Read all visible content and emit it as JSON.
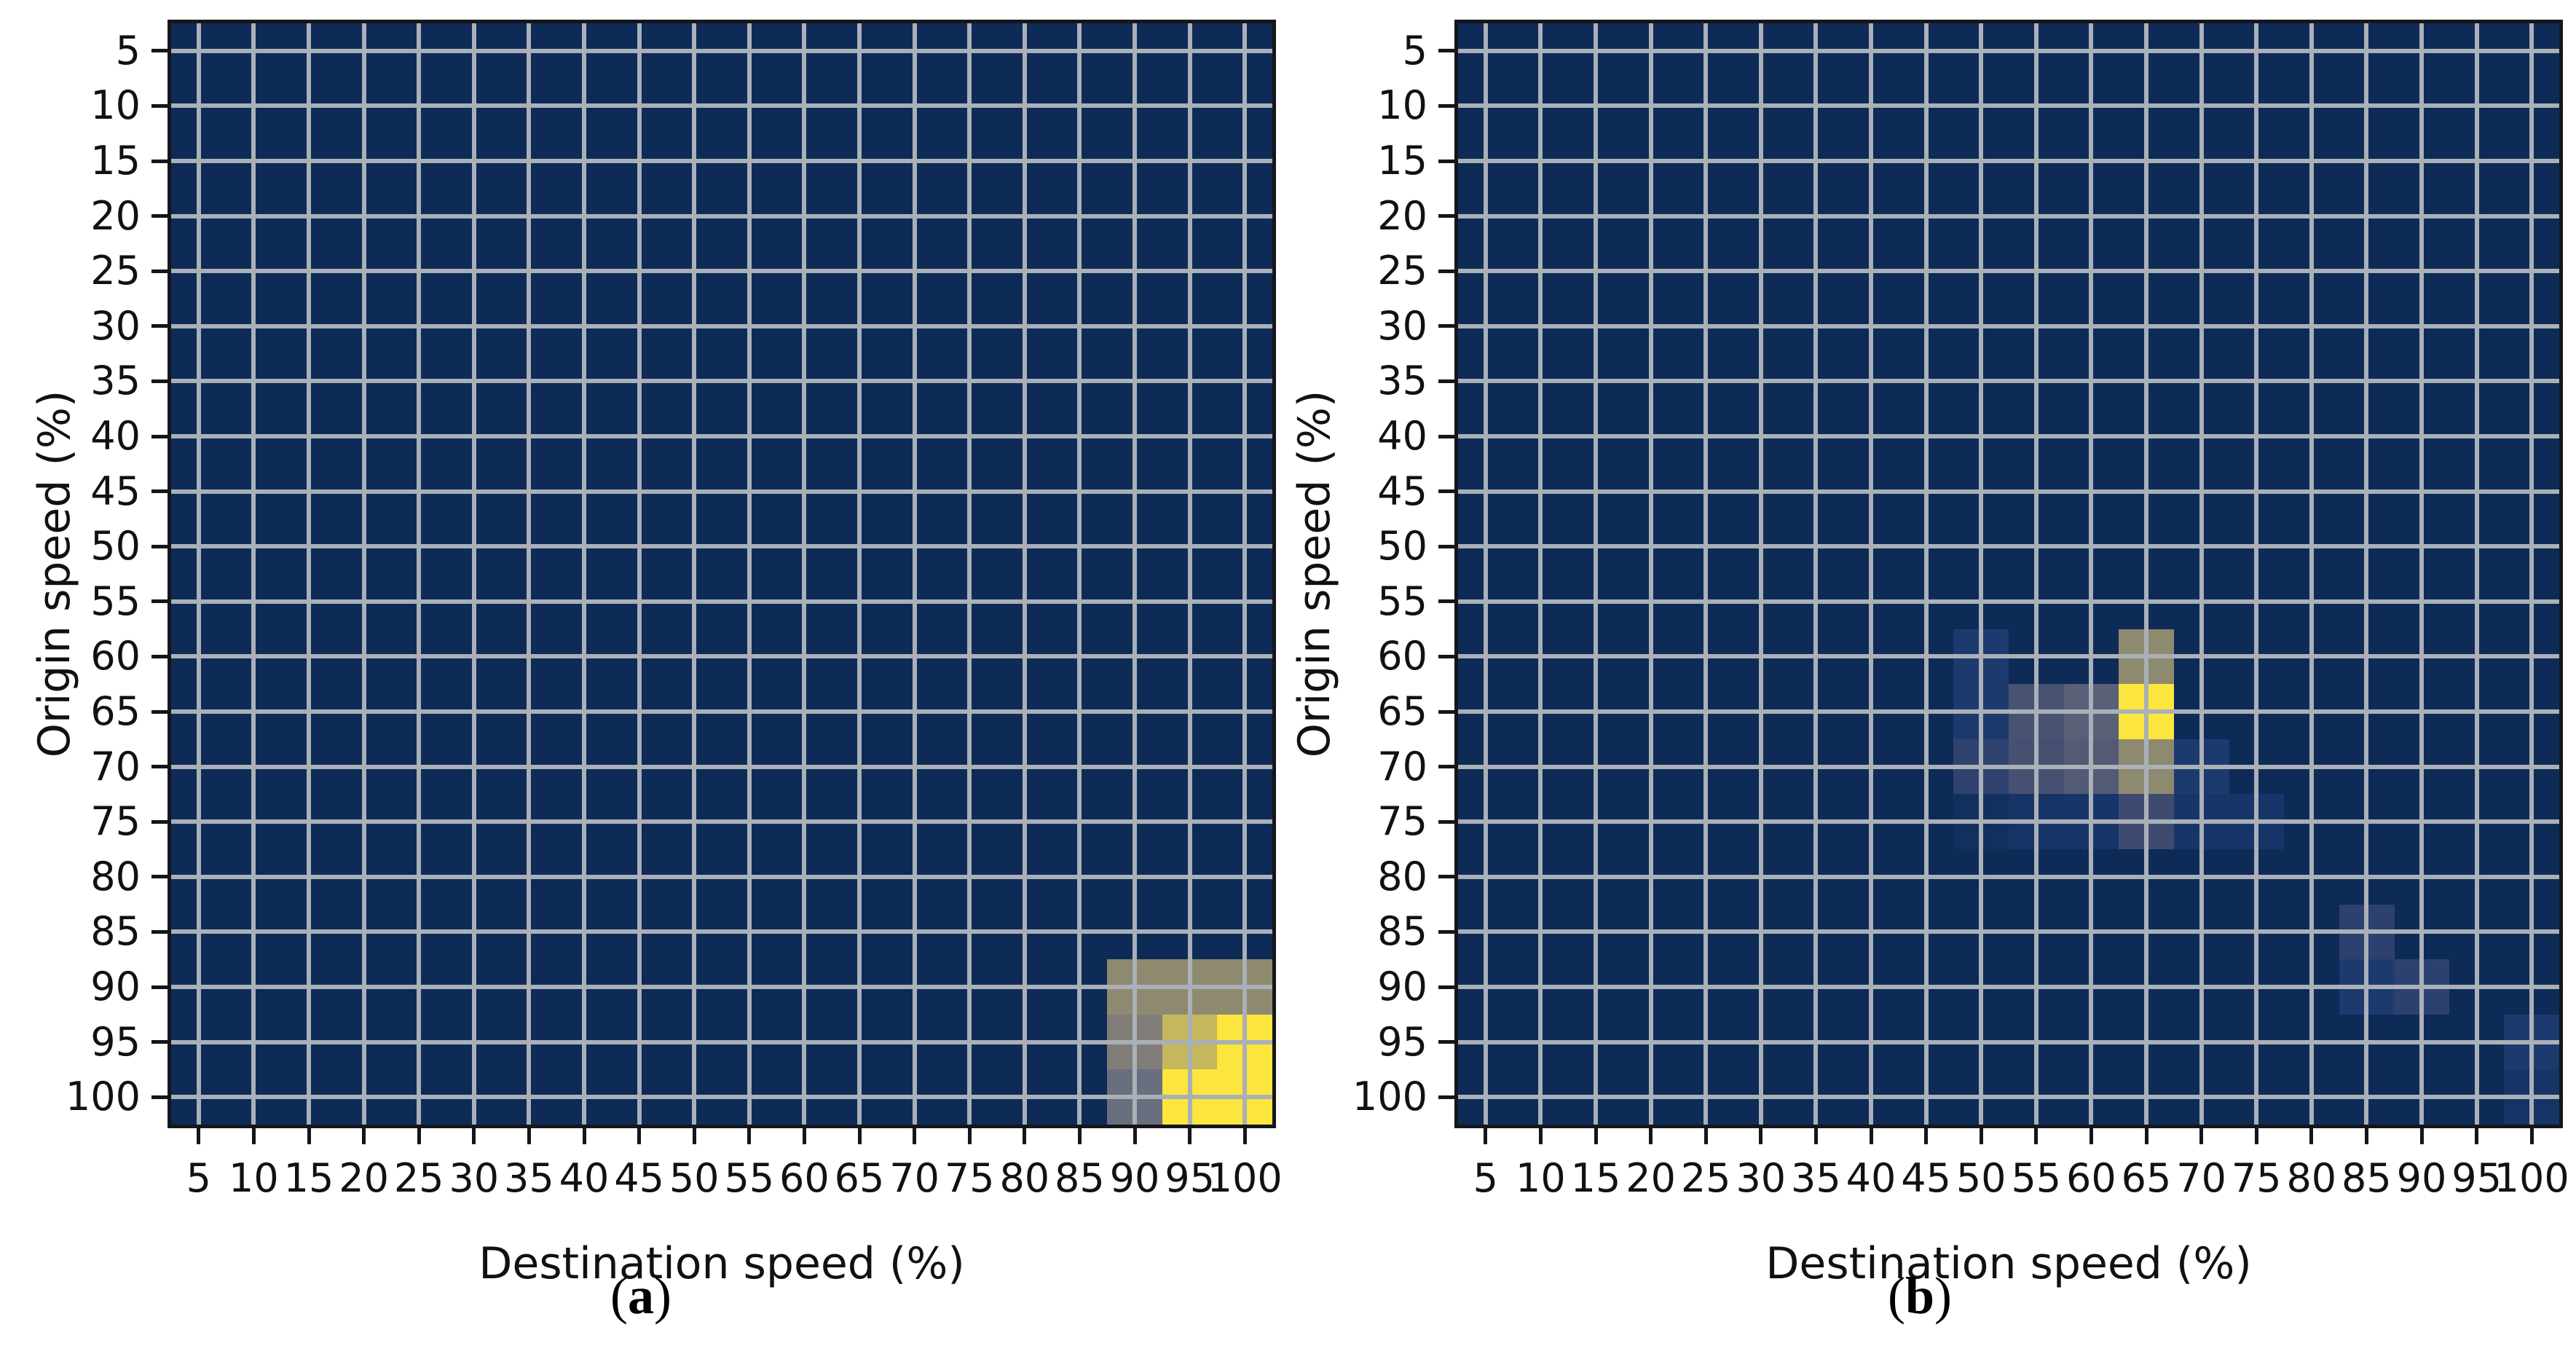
{
  "figure": {
    "description": "Two side-by-side 20x20 heatmaps of origin speed vs destination speed",
    "background": "#ffffff"
  },
  "style": {
    "heatmap_background": "#0e2a57",
    "gridline_color": "#aab0b7",
    "spine_color": "#16161a",
    "tick_color": "#16161a",
    "text_color": "#111111",
    "palette": [
      {
        "v": 0.0,
        "color": "#0e2a57"
      },
      {
        "v": 0.08,
        "color": "#12305f"
      },
      {
        "v": 0.13,
        "color": "#173568"
      },
      {
        "v": 0.16,
        "color": "#1d3a6f"
      },
      {
        "v": 0.24,
        "color": "#2c4170"
      },
      {
        "v": 0.3,
        "color": "#35446f"
      },
      {
        "v": 0.33,
        "color": "#3f4a71"
      },
      {
        "v": 0.38,
        "color": "#485271"
      },
      {
        "v": 0.43,
        "color": "#5a6078"
      },
      {
        "v": 0.47,
        "color": "#6a6f80"
      },
      {
        "v": 0.52,
        "color": "#817e79"
      },
      {
        "v": 0.6,
        "color": "#8e8a70"
      },
      {
        "v": 0.8,
        "color": "#c5b75e"
      },
      {
        "v": 1.0,
        "color": "#fce63e"
      }
    ]
  },
  "chart_data": [
    {
      "id": "a",
      "type": "heatmap",
      "caption": {
        "open": "(",
        "letter": "a",
        "close": ")"
      },
      "xlabel": "Destination speed (%)",
      "ylabel": "Origin speed (%)",
      "x_ticks": [
        5,
        10,
        15,
        20,
        25,
        30,
        35,
        40,
        45,
        50,
        55,
        60,
        65,
        70,
        75,
        80,
        85,
        90,
        95,
        100
      ],
      "y_ticks": [
        5,
        10,
        15,
        20,
        25,
        30,
        35,
        40,
        45,
        50,
        55,
        60,
        65,
        70,
        75,
        80,
        85,
        90,
        95,
        100
      ],
      "x_range": [
        2.5,
        102.5
      ],
      "y_range": [
        2.5,
        102.5
      ],
      "y_axis_inverted": true,
      "grid": true,
      "cell_step_percent": 5,
      "value_note": "normalized color intensity 0-1 (cividis-style colormap, no colorbar shown); unlisted cells are 0",
      "cells": [
        {
          "x": 90,
          "y": 90,
          "v": 0.6
        },
        {
          "x": 95,
          "y": 90,
          "v": 0.6
        },
        {
          "x": 100,
          "y": 90,
          "v": 0.6
        },
        {
          "x": 90,
          "y": 95,
          "v": 0.52
        },
        {
          "x": 95,
          "y": 95,
          "v": 0.8
        },
        {
          "x": 100,
          "y": 95,
          "v": 1.0
        },
        {
          "x": 90,
          "y": 100,
          "v": 0.47
        },
        {
          "x": 95,
          "y": 100,
          "v": 1.0
        },
        {
          "x": 100,
          "y": 100,
          "v": 1.0
        }
      ]
    },
    {
      "id": "b",
      "type": "heatmap",
      "caption": {
        "open": "(",
        "letter": "b",
        "close": ")"
      },
      "xlabel": "Destination speed (%)",
      "ylabel": "Origin speed (%)",
      "x_ticks": [
        5,
        10,
        15,
        20,
        25,
        30,
        35,
        40,
        45,
        50,
        55,
        60,
        65,
        70,
        75,
        80,
        85,
        90,
        95,
        100
      ],
      "y_ticks": [
        5,
        10,
        15,
        20,
        25,
        30,
        35,
        40,
        45,
        50,
        55,
        60,
        65,
        70,
        75,
        80,
        85,
        90,
        95,
        100
      ],
      "x_range": [
        2.5,
        102.5
      ],
      "y_range": [
        2.5,
        102.5
      ],
      "y_axis_inverted": true,
      "grid": true,
      "cell_step_percent": 5,
      "value_note": "normalized color intensity 0-1 (cividis-style colormap, no colorbar shown); unlisted cells are 0",
      "cells": [
        {
          "x": 50,
          "y": 60,
          "v": 0.16
        },
        {
          "x": 65,
          "y": 60,
          "v": 0.6
        },
        {
          "x": 50,
          "y": 65,
          "v": 0.16
        },
        {
          "x": 55,
          "y": 65,
          "v": 0.38
        },
        {
          "x": 60,
          "y": 65,
          "v": 0.43
        },
        {
          "x": 65,
          "y": 65,
          "v": 1.0
        },
        {
          "x": 50,
          "y": 70,
          "v": 0.26
        },
        {
          "x": 55,
          "y": 70,
          "v": 0.37
        },
        {
          "x": 60,
          "y": 70,
          "v": 0.41
        },
        {
          "x": 65,
          "y": 70,
          "v": 0.6
        },
        {
          "x": 70,
          "y": 70,
          "v": 0.16
        },
        {
          "x": 50,
          "y": 75,
          "v": 0.08
        },
        {
          "x": 55,
          "y": 75,
          "v": 0.12
        },
        {
          "x": 60,
          "y": 75,
          "v": 0.13
        },
        {
          "x": 65,
          "y": 75,
          "v": 0.33
        },
        {
          "x": 70,
          "y": 75,
          "v": 0.13
        },
        {
          "x": 75,
          "y": 75,
          "v": 0.13
        },
        {
          "x": 85,
          "y": 85,
          "v": 0.24
        },
        {
          "x": 85,
          "y": 90,
          "v": 0.16
        },
        {
          "x": 90,
          "y": 90,
          "v": 0.24
        },
        {
          "x": 100,
          "y": 95,
          "v": 0.16
        },
        {
          "x": 100,
          "y": 100,
          "v": 0.12
        }
      ]
    }
  ]
}
